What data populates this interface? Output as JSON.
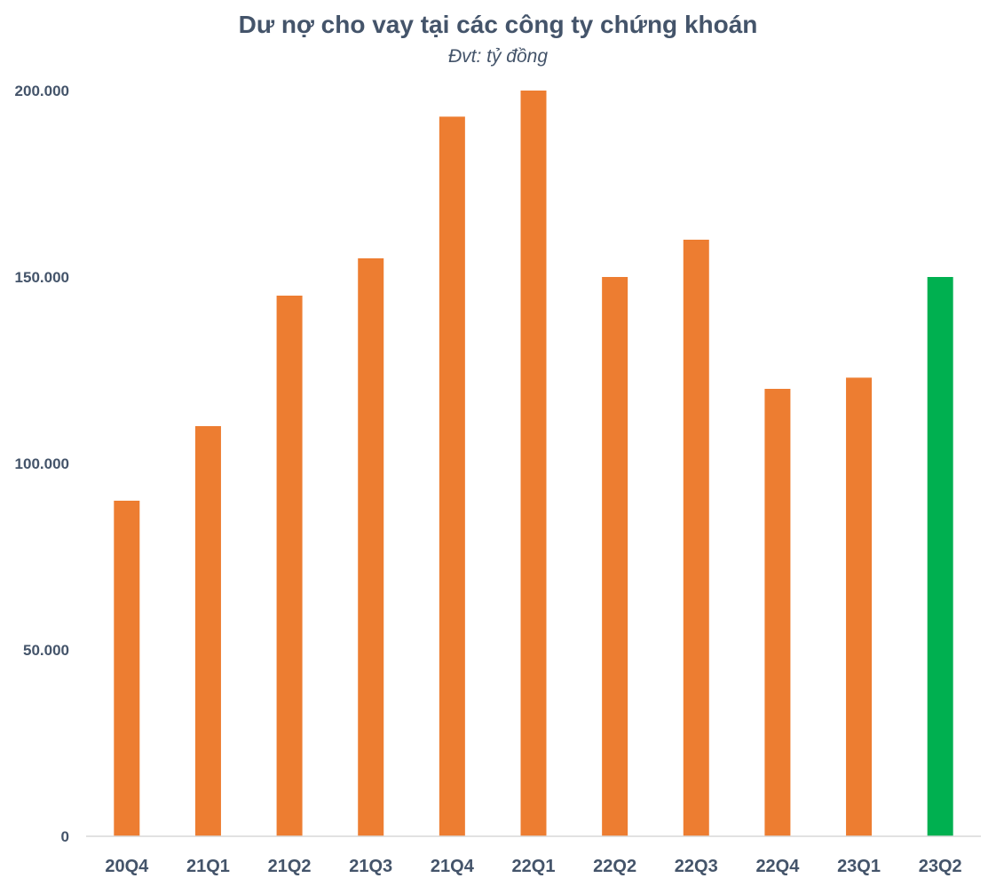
{
  "chart_data": {
    "type": "bar",
    "title": "Dư nợ cho vay tại các công ty chứng khoán",
    "subtitle": "Đvt: tỷ đồng",
    "categories": [
      "20Q4",
      "21Q1",
      "21Q2",
      "21Q3",
      "21Q4",
      "22Q1",
      "22Q2",
      "22Q3",
      "22Q4",
      "23Q1",
      "23Q2"
    ],
    "values": [
      90000,
      110000,
      145000,
      155000,
      193000,
      200000,
      150000,
      160000,
      120000,
      123000,
      150000
    ],
    "ylim": [
      0,
      200000
    ],
    "yticks": [
      0,
      50000,
      100000,
      150000,
      200000
    ],
    "ytick_labels": [
      "0",
      "50.000",
      "100.000",
      "150.000",
      "200.000"
    ],
    "grid": false,
    "xlabel": "",
    "ylabel": "",
    "colors": {
      "default_bar": "#ed7d31",
      "highlight_bar": "#00b050",
      "axis": "#d9d9d9",
      "text": "#44546a"
    },
    "highlight_index": 10
  }
}
